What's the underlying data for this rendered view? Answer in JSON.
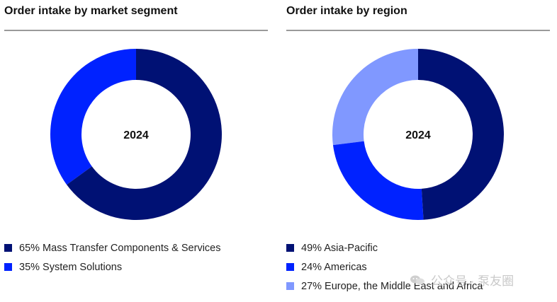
{
  "charts": [
    {
      "title": "Order intake by market segment",
      "center_label": "2024",
      "legend": [
        {
          "text": "65% Mass Transfer Components & Services",
          "color": "#001174"
        },
        {
          "text": "35% System Solutions",
          "color": "#0022ff"
        }
      ]
    },
    {
      "title": "Order intake by region",
      "center_label": "2024",
      "legend": [
        {
          "text": "49% Asia-Pacific",
          "color": "#001174"
        },
        {
          "text": "24% Americas",
          "color": "#0022ff"
        },
        {
          "text": "27% Europe, the Middle East and Africa",
          "color": "#8098ff"
        }
      ]
    }
  ],
  "chart_data": [
    {
      "type": "pie",
      "title": "Order intake by market segment",
      "categories": [
        "Mass Transfer Components & Services",
        "System Solutions"
      ],
      "values": [
        65,
        35
      ],
      "unit": "%",
      "colors": [
        "#001174",
        "#0022ff"
      ],
      "center_label": "2024",
      "legend_position": "bottom"
    },
    {
      "type": "pie",
      "title": "Order intake by region",
      "categories": [
        "Asia-Pacific",
        "Americas",
        "Europe, the Middle East and Africa"
      ],
      "values": [
        49,
        24,
        27
      ],
      "unit": "%",
      "colors": [
        "#001174",
        "#0022ff",
        "#8098ff"
      ],
      "center_label": "2024",
      "legend_position": "bottom"
    }
  ],
  "watermark": {
    "text": "公众号 · 泵友圈",
    "icon": "wechat-icon"
  }
}
